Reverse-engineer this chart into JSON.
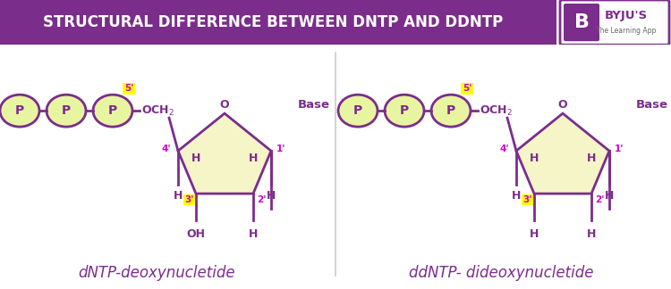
{
  "title": "STRUCTURAL DIFFERENCE BETWEEN DNTP AND DDNTP",
  "title_bg": "#7b2d8b",
  "title_color": "#ffffff",
  "body_bg": "#ffffff",
  "purple": "#7b2d8b",
  "magenta": "#cc00cc",
  "yellow_fill": "#f5f5c8",
  "p_fill": "#e8f5a0",
  "label1": "dNTP-deoxynucletide",
  "label2": "ddNTP- dideoxynucletide",
  "label_color": "#7b2d8b",
  "dNTP_bottom_left": "OH",
  "ddNTP_bottom_left": "H"
}
